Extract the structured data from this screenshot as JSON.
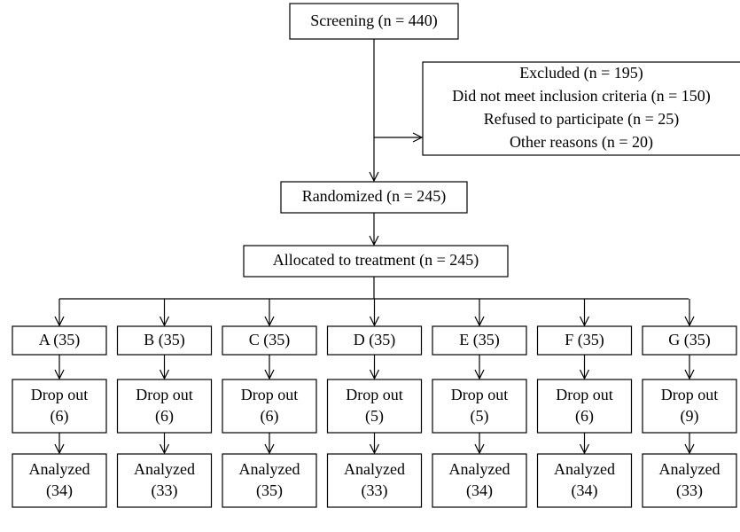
{
  "nodes": {
    "screening": "Screening (n = 440)",
    "excluded": [
      "Excluded (n = 195)",
      "Did not meet inclusion criteria (n = 150)",
      "Refused to participate (n = 25)",
      "Other reasons (n = 20)"
    ],
    "randomized": "Randomized (n = 245)",
    "allocated": "Allocated to treatment (n = 245)"
  },
  "groups": [
    {
      "name": "A (35)",
      "dropout": [
        "Drop out",
        "(6)"
      ],
      "analyzed": [
        "Analyzed",
        "(34)"
      ]
    },
    {
      "name": "B (35)",
      "dropout": [
        "Drop out",
        "(6)"
      ],
      "analyzed": [
        "Analyzed",
        "(33)"
      ]
    },
    {
      "name": "C (35)",
      "dropout": [
        "Drop out",
        "(6)"
      ],
      "analyzed": [
        "Analyzed",
        "(35)"
      ]
    },
    {
      "name": "D (35)",
      "dropout": [
        "Drop out",
        "(5)"
      ],
      "analyzed": [
        "Analyzed",
        "(33)"
      ]
    },
    {
      "name": "E (35)",
      "dropout": [
        "Drop out",
        "(5)"
      ],
      "analyzed": [
        "Analyzed",
        "(34)"
      ]
    },
    {
      "name": "F (35)",
      "dropout": [
        "Drop out",
        "(6)"
      ],
      "analyzed": [
        "Analyzed",
        "(34)"
      ]
    },
    {
      "name": "G (35)",
      "dropout": [
        "Drop out",
        "(9)"
      ],
      "analyzed": [
        "Analyzed",
        "(33)"
      ]
    }
  ]
}
